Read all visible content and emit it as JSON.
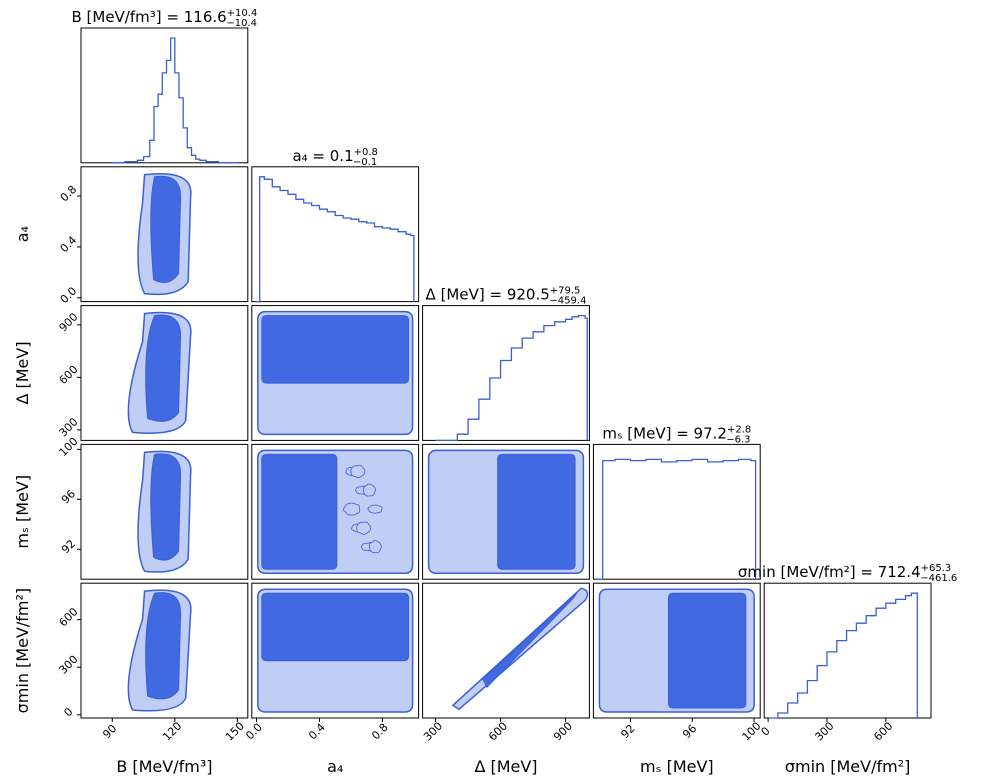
{
  "chart_data": {
    "type": "corner",
    "parameters": [
      {
        "key": "B",
        "symbol": "B",
        "unit": "[MeV/fm³]",
        "title": "= 116.6",
        "plus": "+10.4",
        "minus": "−10.4",
        "range": [
          75,
          155
        ],
        "ticks": [
          90,
          120,
          150
        ]
      },
      {
        "key": "a4",
        "symbol": "a₄",
        "unit": "",
        "title": "= 0.1",
        "plus": "+0.8",
        "minus": "−0.1",
        "range": [
          -0.03,
          1.03
        ],
        "ticks": [
          0.0,
          0.4,
          0.8
        ],
        "tick_labels": [
          "0.0",
          "0.4",
          "0.8"
        ]
      },
      {
        "key": "Delta",
        "symbol": "Δ",
        "unit": "[MeV]",
        "title": "= 920.5",
        "plus": "+79.5",
        "minus": "−459.4",
        "range": [
          240,
          1010
        ],
        "ticks": [
          300,
          600,
          900
        ]
      },
      {
        "key": "ms",
        "symbol": "mₛ",
        "unit": "[MeV]",
        "title": "= 97.2",
        "plus": "+2.8",
        "minus": "−6.3",
        "range": [
          89.6,
          100.4
        ],
        "ticks": [
          92,
          96,
          100
        ]
      },
      {
        "key": "sigma",
        "symbol": "σmin",
        "unit": "[MeV/fm²]",
        "title": "= 712.4",
        "plus": "+65.3",
        "minus": "−461.6",
        "range": [
          -20,
          830
        ],
        "ticks": [
          0,
          300,
          600
        ]
      }
    ],
    "diagonal_histograms": {
      "B": {
        "x": [
          90,
          93,
          96,
          99,
          102,
          105,
          108,
          110,
          112,
          114,
          116,
          118,
          120,
          122,
          124,
          126,
          128,
          130,
          132,
          135,
          138,
          141,
          144,
          147,
          150
        ],
        "density": [
          0.0,
          0.0,
          0.01,
          0.01,
          0.02,
          0.05,
          0.18,
          0.45,
          0.55,
          0.72,
          0.82,
          1.0,
          0.72,
          0.52,
          0.28,
          0.12,
          0.06,
          0.03,
          0.02,
          0.01,
          0.01,
          0.0,
          0.0,
          0.0,
          0.0
        ]
      },
      "a4": {
        "x": [
          0.0,
          0.02,
          0.05,
          0.1,
          0.15,
          0.2,
          0.25,
          0.3,
          0.35,
          0.4,
          0.45,
          0.5,
          0.55,
          0.6,
          0.65,
          0.7,
          0.75,
          0.8,
          0.85,
          0.9,
          0.95,
          0.98,
          1.0
        ],
        "density": [
          0.0,
          1.0,
          0.98,
          0.92,
          0.89,
          0.86,
          0.82,
          0.79,
          0.77,
          0.74,
          0.72,
          0.69,
          0.67,
          0.66,
          0.64,
          0.63,
          0.6,
          0.59,
          0.58,
          0.56,
          0.54,
          0.53,
          0.0
        ]
      },
      "Delta": {
        "x": [
          300,
          350,
          400,
          450,
          500,
          550,
          600,
          650,
          700,
          750,
          800,
          850,
          900,
          930,
          960,
          990,
          1000
        ],
        "density": [
          0.0,
          0.0,
          0.05,
          0.17,
          0.33,
          0.5,
          0.64,
          0.74,
          0.82,
          0.87,
          0.92,
          0.95,
          0.97,
          0.99,
          1.0,
          0.98,
          0.0
        ]
      },
      "ms": {
        "x": [
          89.8,
          90.2,
          91,
          92,
          93,
          94,
          95,
          96,
          97,
          98,
          99,
          99.8,
          100.1
        ],
        "density": [
          0.0,
          0.95,
          0.96,
          0.95,
          0.96,
          0.94,
          0.95,
          0.96,
          0.94,
          0.95,
          0.96,
          0.95,
          0.0
        ]
      },
      "sigma": {
        "x": [
          0,
          50,
          100,
          150,
          200,
          250,
          300,
          350,
          400,
          450,
          500,
          550,
          600,
          650,
          700,
          730,
          760
        ],
        "density": [
          0.0,
          0.04,
          0.12,
          0.2,
          0.3,
          0.42,
          0.53,
          0.62,
          0.7,
          0.76,
          0.82,
          0.88,
          0.92,
          0.95,
          0.98,
          1.0,
          0.0
        ]
      }
    },
    "contour_levels": [
      "68%",
      "95%"
    ],
    "colors": {
      "inner": "#4169e1",
      "outer": "#c0cdf4",
      "line": "#3a5fd6",
      "frame": "#000000"
    }
  }
}
